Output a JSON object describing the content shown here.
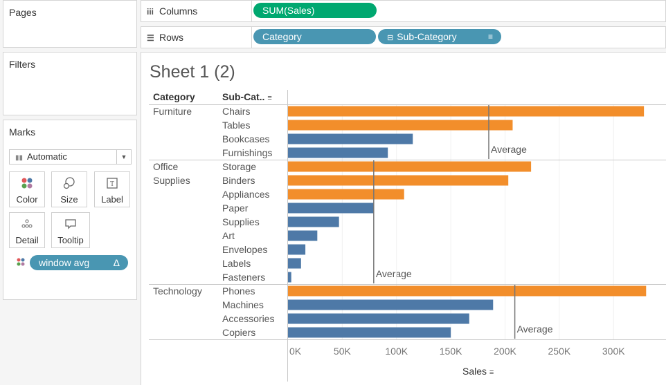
{
  "left_panel": {
    "pages": {
      "title": "Pages"
    },
    "filters": {
      "title": "Filters"
    },
    "marks": {
      "title": "Marks",
      "mark_type": "Automatic",
      "cards": [
        {
          "label": "Color"
        },
        {
          "label": "Size"
        },
        {
          "label": "Label"
        },
        {
          "label": "Detail"
        },
        {
          "label": "Tooltip"
        }
      ],
      "field_pill": {
        "label": "window avg",
        "delta": "Δ"
      }
    }
  },
  "shelves": {
    "columns": {
      "label": "Columns",
      "pills": [
        "SUM(Sales)"
      ]
    },
    "rows": {
      "label": "Rows",
      "pills": [
        "Category",
        "Sub-Category"
      ]
    }
  },
  "sheet": {
    "title": "Sheet 1 (2)",
    "headers": {
      "category": "Category",
      "subcategory": "Sub-Cat.."
    },
    "x_axis_title": "Sales",
    "reference_label": "Average"
  },
  "colors": {
    "above_avg": "#f28e2b",
    "below_avg": "#4e79a7",
    "pill_green": "#00a870",
    "pill_blue": "#4996b2"
  },
  "chart_data": {
    "type": "bar",
    "orientation": "horizontal",
    "title": "Sheet 1 (2)",
    "xlabel": "Sales",
    "xlim": [
      0,
      340000
    ],
    "x_ticks": [
      "0K",
      "50K",
      "100K",
      "150K",
      "200K",
      "250K",
      "300K"
    ],
    "tick_values": [
      0,
      50000,
      100000,
      150000,
      200000,
      250000,
      300000
    ],
    "groups": [
      {
        "category": "Furniture",
        "category_lines": [
          "Furniture"
        ],
        "average": 185000,
        "items": [
          {
            "sub": "Chairs",
            "value": 328000,
            "above": true
          },
          {
            "sub": "Tables",
            "value": 207000,
            "above": true
          },
          {
            "sub": "Bookcases",
            "value": 115000,
            "above": false
          },
          {
            "sub": "Furnishings",
            "value": 92000,
            "above": false
          }
        ]
      },
      {
        "category": "Office Supplies",
        "category_lines": [
          "Office",
          "Supplies"
        ],
        "average": 79000,
        "items": [
          {
            "sub": "Storage",
            "value": 224000,
            "above": true
          },
          {
            "sub": "Binders",
            "value": 203000,
            "above": true
          },
          {
            "sub": "Appliances",
            "value": 107000,
            "above": true
          },
          {
            "sub": "Paper",
            "value": 79000,
            "above": false
          },
          {
            "sub": "Supplies",
            "value": 47000,
            "above": false
          },
          {
            "sub": "Art",
            "value": 27000,
            "above": false
          },
          {
            "sub": "Envelopes",
            "value": 16000,
            "above": false
          },
          {
            "sub": "Labels",
            "value": 12000,
            "above": false
          },
          {
            "sub": "Fasteners",
            "value": 3000,
            "above": false
          }
        ]
      },
      {
        "category": "Technology",
        "category_lines": [
          "Technology"
        ],
        "average": 209000,
        "items": [
          {
            "sub": "Phones",
            "value": 330000,
            "above": true
          },
          {
            "sub": "Machines",
            "value": 189000,
            "above": false
          },
          {
            "sub": "Accessories",
            "value": 167000,
            "above": false
          },
          {
            "sub": "Copiers",
            "value": 150000,
            "above": false
          }
        ]
      }
    ]
  }
}
